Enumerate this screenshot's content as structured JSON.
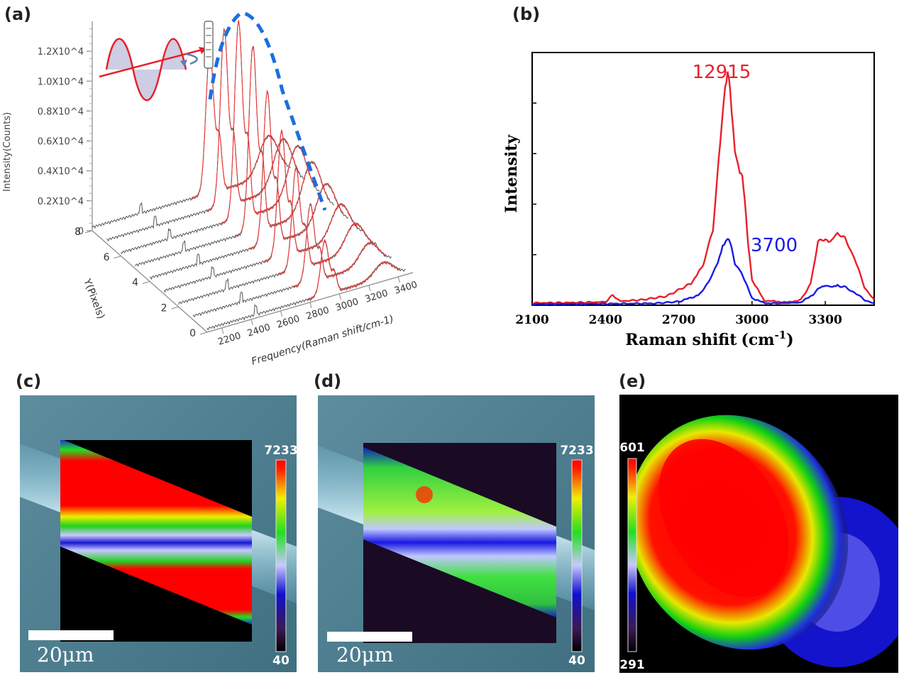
{
  "panel_labels": [
    "(a)",
    "(b)",
    "(c)",
    "(d)",
    "(e)"
  ],
  "chart_data": [
    {
      "panel": "(a)",
      "type": "line",
      "zlabel": "Intensity(Counts)",
      "z_ticks": [
        "0",
        "0.2X10^4",
        "0.4X10^4",
        "0.6X10^4",
        "0.8X10^4",
        "1.0X10^4",
        "1.2X10^4"
      ],
      "z_tick_values": [
        0,
        2000,
        4000,
        6000,
        8000,
        10000,
        12000
      ],
      "ylabel": "Y(Pixels)",
      "y_ticks": [
        "0",
        "2",
        "4",
        "6",
        "8"
      ],
      "xlabel": "Frequency(Raman shift/cm-1)",
      "x_ticks": [
        "2200",
        "2400",
        "2600",
        "2800",
        "3000",
        "3200",
        "3400"
      ],
      "traces": 9,
      "peaks": [
        {
          "y": 0,
          "x_peak": 2900,
          "height": 3600
        },
        {
          "y": 1,
          "x_peak": 2900,
          "height": 5200
        },
        {
          "y": 2,
          "x_peak": 2900,
          "height": 6800
        },
        {
          "y": 3,
          "x_peak": 2900,
          "height": 8400
        },
        {
          "y": 4,
          "x_peak": 2900,
          "height": 10200
        },
        {
          "y": 5,
          "x_peak": 2900,
          "height": 12400
        },
        {
          "y": 6,
          "x_peak": 2900,
          "height": 13200
        },
        {
          "y": 7,
          "x_peak": 2900,
          "height": 11800
        },
        {
          "y": 8,
          "x_peak": 2900,
          "height": 9600
        }
      ]
    },
    {
      "panel": "(b)",
      "type": "line",
      "xlabel": "Raman shifit",
      "xunit_base": "(cm",
      "xunit_sup": "-1",
      "xunit_close": ")",
      "ylabel": "Intensity",
      "xlim": [
        2100,
        3500
      ],
      "x_ticks": [
        "2100",
        "2400",
        "2700",
        "3000",
        "3300"
      ],
      "x_tick_values": [
        2100,
        2400,
        2700,
        3000,
        3300
      ],
      "ylim": [
        0,
        14000
      ],
      "series": [
        {
          "color": "#e8202a",
          "x": [
            2100,
            2250,
            2400,
            2430,
            2460,
            2550,
            2650,
            2750,
            2800,
            2840,
            2870,
            2890,
            2900,
            2910,
            2930,
            2950,
            2960,
            2970,
            2985,
            3000,
            3050,
            3100,
            3150,
            3200,
            3240,
            3270,
            3300,
            3320,
            3350,
            3380,
            3420,
            3460,
            3500
          ],
          "y": [
            120,
            140,
            180,
            560,
            220,
            300,
            500,
            1200,
            2200,
            4200,
            9000,
            12200,
            12915,
            12000,
            8600,
            7400,
            7200,
            5800,
            3300,
            1400,
            260,
            200,
            160,
            300,
            1200,
            3500,
            3700,
            3500,
            4000,
            3700,
            2600,
            1000,
            300
          ]
        },
        {
          "color": "#1a1ae6",
          "x": [
            2100,
            2400,
            2600,
            2700,
            2780,
            2820,
            2860,
            2880,
            2900,
            2915,
            2930,
            2950,
            2975,
            3000,
            3050,
            3100,
            3200,
            3250,
            3280,
            3300,
            3330,
            3350,
            3380,
            3420,
            3460,
            3500
          ],
          "y": [
            60,
            80,
            100,
            200,
            550,
            1200,
            2400,
            3300,
            3700,
            3300,
            2300,
            2000,
            1200,
            400,
            120,
            100,
            150,
            600,
            1000,
            1100,
            1000,
            1100,
            1000,
            700,
            300,
            100
          ]
        }
      ],
      "annotations": [
        {
          "text": "12915",
          "color": "#e8202a"
        },
        {
          "text": "3700",
          "color": "#1a1ae6"
        }
      ]
    },
    {
      "panel": "(c)",
      "type": "heatmap",
      "colorbar_max": "7233",
      "colorbar_min": "40",
      "scalebar_label": "20μm"
    },
    {
      "panel": "(d)",
      "type": "heatmap",
      "colorbar_max": "7233",
      "colorbar_min": "40",
      "scalebar_label": "20μm"
    },
    {
      "panel": "(e)",
      "type": "heatmap",
      "colorbar_max": "601",
      "colorbar_min": "291"
    }
  ],
  "colors": {
    "red": "#e8202a",
    "blue": "#1a1ae6",
    "dashed_envelope": "#1b6fe0",
    "microscope_bg": "#4f7f90"
  }
}
